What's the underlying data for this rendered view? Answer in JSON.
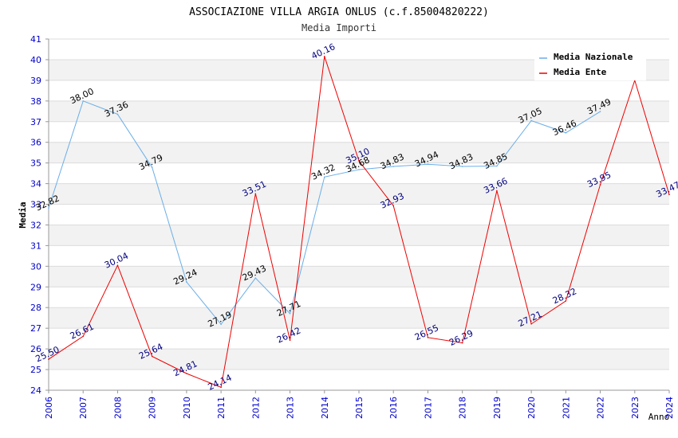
{
  "chart_data": {
    "type": "line",
    "title": "ASSOCIAZIONE VILLA ARGIA ONLUS (c.f.85004820222)",
    "subtitle": "Media Importi",
    "xlabel": "Anno",
    "ylabel": "Media",
    "ylim": [
      24,
      41
    ],
    "yticks": [
      "24",
      "25",
      "26",
      "27",
      "28",
      "29",
      "30",
      "31",
      "32",
      "33",
      "34",
      "35",
      "36",
      "37",
      "38",
      "39",
      "40",
      "41"
    ],
    "categories": [
      "2006",
      "2007",
      "2008",
      "2009",
      "2010",
      "2011",
      "2012",
      "2013",
      "2014",
      "2015",
      "2016",
      "2017",
      "2018",
      "2019",
      "2020",
      "2021",
      "2022",
      "2023",
      "2024"
    ],
    "legend_position": "top-right",
    "series": [
      {
        "name": "Media Nazionale",
        "color": "#6aaee8",
        "label_color": "#000000",
        "values": [
          32.82,
          38.0,
          37.36,
          34.79,
          29.24,
          27.19,
          29.43,
          27.71,
          34.32,
          34.68,
          34.83,
          34.94,
          34.83,
          34.85,
          37.05,
          36.46,
          37.49,
          null,
          null
        ],
        "labels": [
          "32.82",
          "38.00",
          "37.36",
          "34.79",
          "29.24",
          "27.19",
          "29.43",
          "27.71",
          "34.32",
          "34.68",
          "34.83",
          "34.94",
          "34.83",
          "34.85",
          "37.05",
          "36.46",
          "37.49",
          null,
          null
        ]
      },
      {
        "name": "Media Ente",
        "color": "#ee0000",
        "label_color": "#000080",
        "values": [
          25.5,
          26.61,
          30.04,
          25.64,
          24.81,
          24.14,
          33.51,
          26.42,
          40.16,
          35.1,
          32.93,
          26.55,
          26.29,
          33.66,
          27.21,
          28.32,
          33.95,
          39.0,
          33.47
        ],
        "labels": [
          "25.50",
          "26.61",
          "30.04",
          "25.64",
          "24.81",
          "24.14",
          "33.51",
          "26.42",
          "40.16",
          "35.10",
          "32.93",
          "26.55",
          "26.29",
          "33.66",
          "27.21",
          "28.32",
          "33.95",
          null,
          "33.47"
        ]
      }
    ]
  }
}
